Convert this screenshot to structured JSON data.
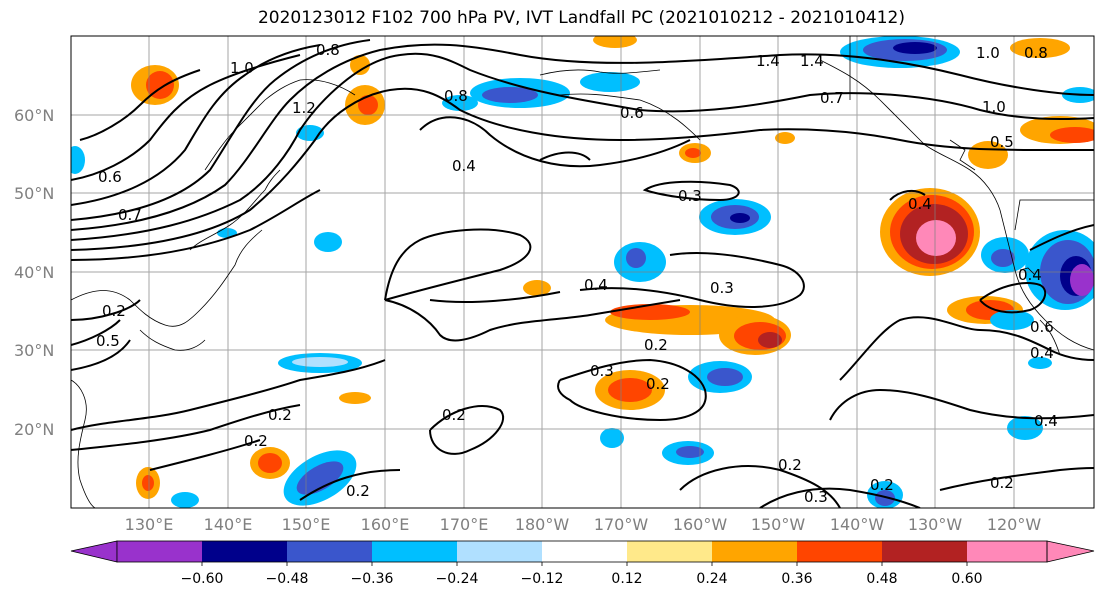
{
  "title": "2020123012 F102 700 hPa PV, IVT Landfall PC (2021010212 - 2021010412)",
  "lat_labels": [
    "60°N",
    "50°N",
    "40°N",
    "30°N",
    "20°N"
  ],
  "lon_labels": [
    "130°E",
    "140°E",
    "150°E",
    "160°E",
    "170°E",
    "180°W",
    "170°W",
    "160°W",
    "150°W",
    "140°W",
    "130°W",
    "120°W"
  ],
  "contour_labels": [
    "0.8",
    "1.0",
    "1.2",
    "0.8",
    "0.6",
    "0.4",
    "0.3",
    "0.4",
    "0.3",
    "0.2",
    "0.2",
    "0.2",
    "0.3",
    "0.2",
    "0.2",
    "0.2",
    "0.3",
    "0.2",
    "1.4",
    "1.4",
    "1.0",
    "0.8",
    "0.7",
    "1.0",
    "0.5",
    "0.4",
    "0.4",
    "0.6",
    "0.4",
    "0.4",
    "0.2",
    "0.6",
    "0.7",
    "0.2",
    "0.5",
    "0.2"
  ],
  "colorbar": {
    "ticks": [
      "−0.60",
      "−0.48",
      "−0.36",
      "−0.24",
      "−0.12",
      "0.12",
      "0.24",
      "0.36",
      "0.48",
      "0.60"
    ],
    "colors": [
      "#9932cc",
      "#00008b",
      "#3a56cc",
      "#00bfff",
      "#b0e0ff",
      "#ffffff",
      "#ffe98a",
      "#ffa500",
      "#ff4500",
      "#b22222",
      "#ff88b8"
    ]
  }
}
